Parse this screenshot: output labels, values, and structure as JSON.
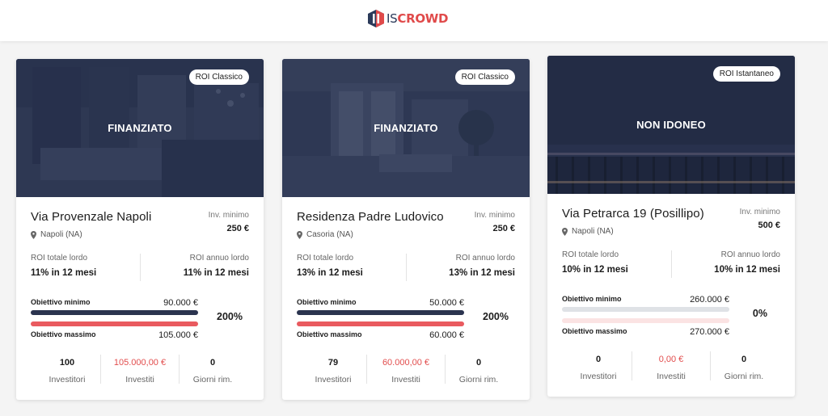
{
  "brand": {
    "prefix": "IS",
    "name": "CROWD"
  },
  "colors": {
    "dark_bar": "#2b344f",
    "red_bar": "#e95a5f",
    "accent_red": "#e24d4d"
  },
  "cards": [
    {
      "status": "FINANZIATO",
      "roi_badge": "ROI Classico",
      "title": "Via Provenzale Napoli",
      "location": "Napoli (NA)",
      "inv_label": "Inv. minimo",
      "inv_value": "250 €",
      "roi_total_label": "ROI totale lordo",
      "roi_total_value": "11% in 12 mesi",
      "roi_annual_label": "ROI annuo lordo",
      "roi_annual_value": "11% in 12 mesi",
      "min_label": "Obiettivo minimo",
      "min_value": "90.000 €",
      "max_label": "Obiettivo massimo",
      "max_value": "105.000 €",
      "percent": "200%",
      "progress_fraction": 1.0,
      "investors_value": "100",
      "investors_label": "Investitori",
      "invested_value": "105.000,00 €",
      "invested_label": "Investiti",
      "days_value": "0",
      "days_label": "Giorni rim."
    },
    {
      "status": "FINANZIATO",
      "roi_badge": "ROI Classico",
      "title": "Residenza Padre Ludovico",
      "location": "Casoria (NA)",
      "inv_label": "Inv. minimo",
      "inv_value": "250 €",
      "roi_total_label": "ROI totale lordo",
      "roi_total_value": "13% in 12 mesi",
      "roi_annual_label": "ROI annuo lordo",
      "roi_annual_value": "13% in 12 mesi",
      "min_label": "Obiettivo minimo",
      "min_value": "50.000 €",
      "max_label": "Obiettivo massimo",
      "max_value": "60.000 €",
      "percent": "200%",
      "progress_fraction": 1.0,
      "investors_value": "79",
      "investors_label": "Investitori",
      "invested_value": "60.000,00 €",
      "invested_label": "Investiti",
      "days_value": "0",
      "days_label": "Giorni rim."
    },
    {
      "status": "NON IDONEO",
      "roi_badge": "ROI Istantaneo",
      "title": "Via Petrarca 19 (Posillipo)",
      "location": "Napoli (NA)",
      "inv_label": "Inv. minimo",
      "inv_value": "500 €",
      "roi_total_label": "ROI totale lordo",
      "roi_total_value": "10% in 12 mesi",
      "roi_annual_label": "ROI annuo lordo",
      "roi_annual_value": "10% in 12 mesi",
      "min_label": "Obiettivo minimo",
      "min_value": "260.000 €",
      "max_label": "Obiettivo massimo",
      "max_value": "270.000 €",
      "percent": "0%",
      "progress_fraction": 0.0,
      "investors_value": "0",
      "investors_label": "Investitori",
      "invested_value": "0,00 €",
      "invested_label": "Investiti",
      "days_value": "0",
      "days_label": "Giorni rim."
    }
  ]
}
